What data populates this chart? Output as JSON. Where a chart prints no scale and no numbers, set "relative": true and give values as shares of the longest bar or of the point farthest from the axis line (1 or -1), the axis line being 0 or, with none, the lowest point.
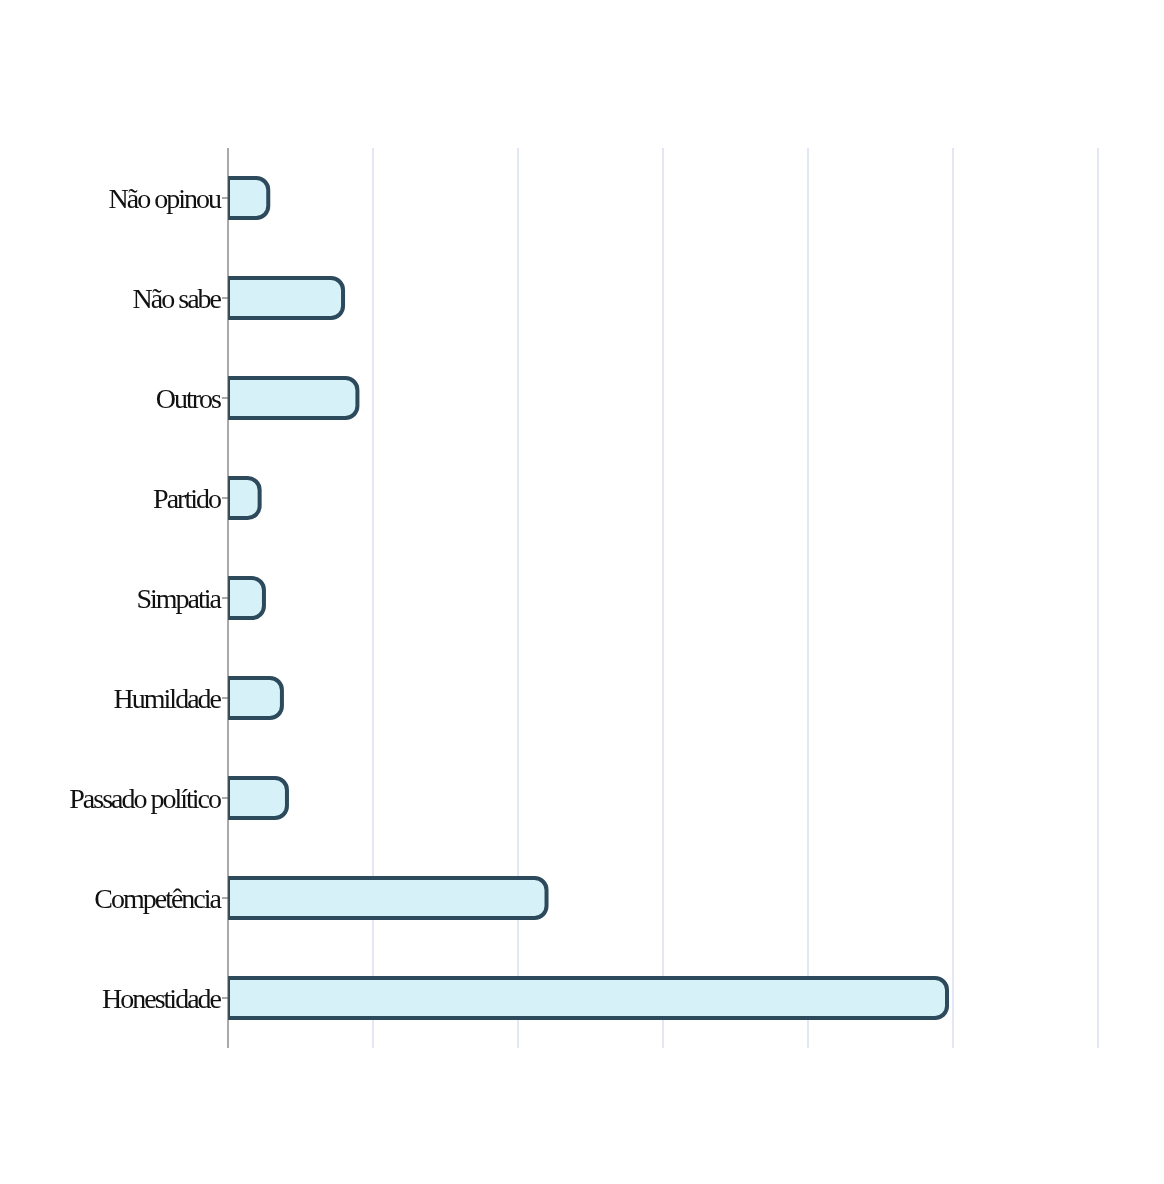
{
  "chart_data": {
    "type": "bar",
    "orientation": "horizontal",
    "relative": true,
    "grid": "x",
    "categories": [
      "Não opinou",
      "Não sabe",
      "Outros",
      "Partido",
      "Simpatia",
      "Humildade",
      "Passado político",
      "Competência",
      "Honestidade"
    ],
    "values": [
      0.056,
      0.16,
      0.18,
      0.044,
      0.05,
      0.075,
      0.082,
      0.443,
      1
    ],
    "color": "#d6f2f8"
  }
}
